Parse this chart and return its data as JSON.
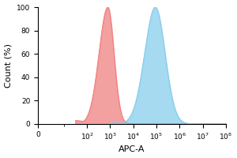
{
  "title": "",
  "xlabel": "APC-A",
  "ylabel": "Count (%)",
  "ylim": [
    0,
    100
  ],
  "yticks": [
    0,
    20,
    40,
    60,
    80,
    100
  ],
  "red_peak_log": 2.9,
  "red_sigma": 0.38,
  "red_color": "#F08080",
  "red_alpha": 0.75,
  "blue_peak_log": 4.95,
  "blue_sigma": 0.42,
  "blue_color": "#87CEEB",
  "blue_alpha": 0.75,
  "background_color": "#ffffff",
  "linthresh": 10,
  "figsize": [
    3.0,
    2.0
  ],
  "dpi": 100
}
